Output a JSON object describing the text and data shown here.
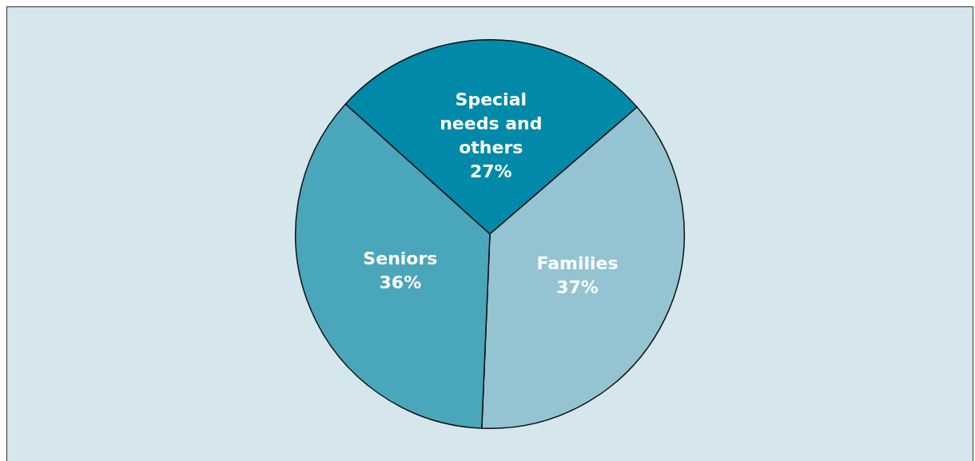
{
  "chart_data": {
    "type": "pie",
    "categories": [
      "Special needs and others",
      "Families",
      "Seniors"
    ],
    "values": [
      27,
      37,
      36
    ],
    "colors": [
      "#0089a8",
      "#94c4d2",
      "#4aa6bb"
    ],
    "value_labels": [
      "27%",
      "37%",
      "36%"
    ],
    "legend": false
  }
}
